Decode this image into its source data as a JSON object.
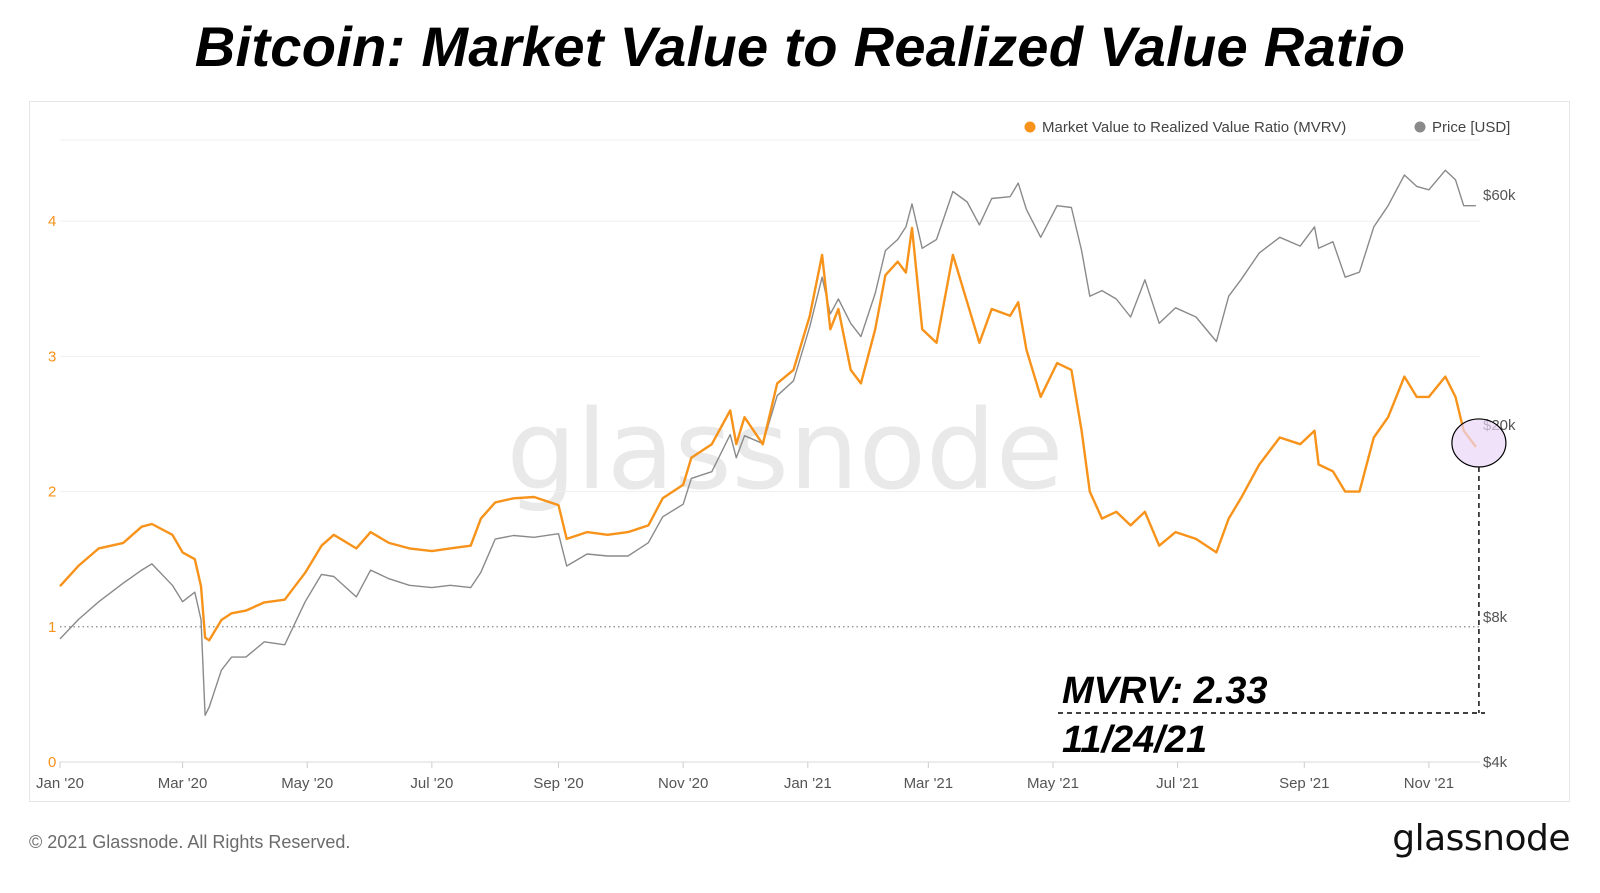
{
  "title": "Bitcoin: Market Value to Realized Value Ratio",
  "footer": {
    "copyright": "© 2021 Glassnode. All Rights Reserved.",
    "brand": "glassnode"
  },
  "watermark": "glassnode",
  "colors": {
    "mvrv": "#f7931a",
    "price": "#8a8a8a",
    "highlight": "#e9d5f7",
    "annotation": "#000000"
  },
  "annotation": {
    "line1": "MVRV: 2.33",
    "line2": "11/24/21"
  },
  "chart_data": {
    "type": "line",
    "title": "Bitcoin: Market Value to Realized Value Ratio",
    "x_tick_labels": [
      "Jan '20",
      "Mar '20",
      "May '20",
      "Jul '20",
      "Sep '20",
      "Nov '20",
      "Jan '21",
      "Mar '21",
      "May '21",
      "Jul '21",
      "Sep '21",
      "Nov '21"
    ],
    "x_range": [
      "2020-01-01",
      "2021-11-26"
    ],
    "y_left": {
      "ticks": [
        "0",
        "1",
        "2",
        "3",
        "4"
      ],
      "range": [
        0,
        4.6
      ]
    },
    "y_right": {
      "ticks": [
        "$4k",
        "$8k",
        "$20k",
        "$60k"
      ],
      "scale": "log",
      "range": [
        4000,
        78000
      ]
    },
    "legend": {
      "position": "top-right",
      "entries": [
        "Market Value to Realized Value Ratio (MVRV)",
        "Price [USD]"
      ]
    },
    "reference_line": {
      "y": 1,
      "style": "dotted"
    },
    "highlight_point": {
      "date": "2021-11-24",
      "mvrv": 2.33
    },
    "series": [
      {
        "name": "Market Value to Realized Value Ratio (MVRV)",
        "axis": "left",
        "points": [
          [
            "2020-01-01",
            1.3
          ],
          [
            "2020-01-10",
            1.45
          ],
          [
            "2020-01-20",
            1.58
          ],
          [
            "2020-02-01",
            1.62
          ],
          [
            "2020-02-10",
            1.74
          ],
          [
            "2020-02-15",
            1.76
          ],
          [
            "2020-02-25",
            1.68
          ],
          [
            "2020-03-01",
            1.55
          ],
          [
            "2020-03-07",
            1.5
          ],
          [
            "2020-03-10",
            1.3
          ],
          [
            "2020-03-12",
            0.92
          ],
          [
            "2020-03-14",
            0.9
          ],
          [
            "2020-03-20",
            1.05
          ],
          [
            "2020-03-25",
            1.1
          ],
          [
            "2020-04-01",
            1.12
          ],
          [
            "2020-04-10",
            1.18
          ],
          [
            "2020-04-20",
            1.2
          ],
          [
            "2020-04-30",
            1.4
          ],
          [
            "2020-05-08",
            1.6
          ],
          [
            "2020-05-14",
            1.68
          ],
          [
            "2020-05-25",
            1.58
          ],
          [
            "2020-06-01",
            1.7
          ],
          [
            "2020-06-10",
            1.62
          ],
          [
            "2020-06-20",
            1.58
          ],
          [
            "2020-07-01",
            1.56
          ],
          [
            "2020-07-10",
            1.58
          ],
          [
            "2020-07-20",
            1.6
          ],
          [
            "2020-07-25",
            1.8
          ],
          [
            "2020-08-01",
            1.92
          ],
          [
            "2020-08-10",
            1.95
          ],
          [
            "2020-08-20",
            1.96
          ],
          [
            "2020-09-01",
            1.9
          ],
          [
            "2020-09-05",
            1.65
          ],
          [
            "2020-09-15",
            1.7
          ],
          [
            "2020-09-25",
            1.68
          ],
          [
            "2020-10-05",
            1.7
          ],
          [
            "2020-10-15",
            1.75
          ],
          [
            "2020-10-22",
            1.95
          ],
          [
            "2020-11-01",
            2.05
          ],
          [
            "2020-11-05",
            2.25
          ],
          [
            "2020-11-15",
            2.35
          ],
          [
            "2020-11-24",
            2.6
          ],
          [
            "2020-11-27",
            2.35
          ],
          [
            "2020-12-01",
            2.55
          ],
          [
            "2020-12-10",
            2.35
          ],
          [
            "2020-12-17",
            2.8
          ],
          [
            "2020-12-25",
            2.9
          ],
          [
            "2021-01-02",
            3.3
          ],
          [
            "2021-01-08",
            3.75
          ],
          [
            "2021-01-12",
            3.2
          ],
          [
            "2021-01-16",
            3.35
          ],
          [
            "2021-01-22",
            2.9
          ],
          [
            "2021-01-27",
            2.8
          ],
          [
            "2021-02-03",
            3.2
          ],
          [
            "2021-02-08",
            3.6
          ],
          [
            "2021-02-14",
            3.7
          ],
          [
            "2021-02-18",
            3.62
          ],
          [
            "2021-02-21",
            3.95
          ],
          [
            "2021-02-26",
            3.2
          ],
          [
            "2021-03-05",
            3.1
          ],
          [
            "2021-03-13",
            3.75
          ],
          [
            "2021-03-20",
            3.4
          ],
          [
            "2021-03-26",
            3.1
          ],
          [
            "2021-04-01",
            3.35
          ],
          [
            "2021-04-10",
            3.3
          ],
          [
            "2021-04-14",
            3.4
          ],
          [
            "2021-04-18",
            3.05
          ],
          [
            "2021-04-25",
            2.7
          ],
          [
            "2021-05-03",
            2.95
          ],
          [
            "2021-05-10",
            2.9
          ],
          [
            "2021-05-15",
            2.45
          ],
          [
            "2021-05-19",
            2.0
          ],
          [
            "2021-05-25",
            1.8
          ],
          [
            "2021-06-01",
            1.85
          ],
          [
            "2021-06-08",
            1.75
          ],
          [
            "2021-06-15",
            1.85
          ],
          [
            "2021-06-22",
            1.6
          ],
          [
            "2021-06-30",
            1.7
          ],
          [
            "2021-07-10",
            1.65
          ],
          [
            "2021-07-20",
            1.55
          ],
          [
            "2021-07-26",
            1.8
          ],
          [
            "2021-08-01",
            1.95
          ],
          [
            "2021-08-10",
            2.2
          ],
          [
            "2021-08-20",
            2.4
          ],
          [
            "2021-08-30",
            2.35
          ],
          [
            "2021-09-06",
            2.45
          ],
          [
            "2021-09-08",
            2.2
          ],
          [
            "2021-09-15",
            2.15
          ],
          [
            "2021-09-21",
            2.0
          ],
          [
            "2021-09-28",
            2.0
          ],
          [
            "2021-10-05",
            2.4
          ],
          [
            "2021-10-12",
            2.55
          ],
          [
            "2021-10-20",
            2.85
          ],
          [
            "2021-10-26",
            2.7
          ],
          [
            "2021-11-01",
            2.7
          ],
          [
            "2021-11-09",
            2.85
          ],
          [
            "2021-11-14",
            2.7
          ],
          [
            "2021-11-18",
            2.45
          ],
          [
            "2021-11-24",
            2.33
          ]
        ]
      },
      {
        "name": "Price [USD]",
        "axis": "right",
        "points": [
          [
            "2020-01-01",
            7200
          ],
          [
            "2020-01-10",
            7900
          ],
          [
            "2020-01-20",
            8600
          ],
          [
            "2020-02-01",
            9400
          ],
          [
            "2020-02-10",
            10000
          ],
          [
            "2020-02-15",
            10300
          ],
          [
            "2020-02-25",
            9300
          ],
          [
            "2020-03-01",
            8600
          ],
          [
            "2020-03-07",
            9000
          ],
          [
            "2020-03-10",
            7900
          ],
          [
            "2020-03-12",
            5000
          ],
          [
            "2020-03-14",
            5200
          ],
          [
            "2020-03-20",
            6200
          ],
          [
            "2020-03-25",
            6600
          ],
          [
            "2020-04-01",
            6600
          ],
          [
            "2020-04-10",
            7100
          ],
          [
            "2020-04-20",
            7000
          ],
          [
            "2020-04-30",
            8600
          ],
          [
            "2020-05-08",
            9800
          ],
          [
            "2020-05-14",
            9700
          ],
          [
            "2020-05-25",
            8800
          ],
          [
            "2020-06-01",
            10000
          ],
          [
            "2020-06-10",
            9600
          ],
          [
            "2020-06-20",
            9300
          ],
          [
            "2020-07-01",
            9200
          ],
          [
            "2020-07-10",
            9300
          ],
          [
            "2020-07-20",
            9200
          ],
          [
            "2020-07-25",
            9900
          ],
          [
            "2020-08-01",
            11600
          ],
          [
            "2020-08-10",
            11800
          ],
          [
            "2020-08-20",
            11700
          ],
          [
            "2020-09-01",
            11900
          ],
          [
            "2020-09-05",
            10200
          ],
          [
            "2020-09-15",
            10800
          ],
          [
            "2020-09-25",
            10700
          ],
          [
            "2020-10-05",
            10700
          ],
          [
            "2020-10-15",
            11400
          ],
          [
            "2020-10-22",
            12900
          ],
          [
            "2020-11-01",
            13700
          ],
          [
            "2020-11-05",
            15500
          ],
          [
            "2020-11-15",
            16000
          ],
          [
            "2020-11-24",
            19100
          ],
          [
            "2020-11-27",
            17100
          ],
          [
            "2020-12-01",
            19000
          ],
          [
            "2020-12-10",
            18300
          ],
          [
            "2020-12-17",
            23000
          ],
          [
            "2020-12-25",
            24700
          ],
          [
            "2021-01-02",
            32000
          ],
          [
            "2021-01-08",
            40500
          ],
          [
            "2021-01-12",
            34000
          ],
          [
            "2021-01-16",
            36500
          ],
          [
            "2021-01-22",
            32500
          ],
          [
            "2021-01-27",
            30500
          ],
          [
            "2021-02-03",
            37500
          ],
          [
            "2021-02-08",
            46000
          ],
          [
            "2021-02-14",
            48500
          ],
          [
            "2021-02-18",
            51500
          ],
          [
            "2021-02-21",
            57500
          ],
          [
            "2021-02-26",
            46500
          ],
          [
            "2021-03-05",
            48500
          ],
          [
            "2021-03-13",
            61000
          ],
          [
            "2021-03-20",
            58000
          ],
          [
            "2021-03-26",
            52000
          ],
          [
            "2021-04-01",
            59000
          ],
          [
            "2021-04-10",
            59500
          ],
          [
            "2021-04-14",
            63500
          ],
          [
            "2021-04-18",
            56000
          ],
          [
            "2021-04-25",
            49000
          ],
          [
            "2021-05-03",
            57000
          ],
          [
            "2021-05-10",
            56500
          ],
          [
            "2021-05-15",
            46000
          ],
          [
            "2021-05-19",
            37000
          ],
          [
            "2021-05-25",
            38000
          ],
          [
            "2021-06-01",
            36500
          ],
          [
            "2021-06-08",
            33500
          ],
          [
            "2021-06-15",
            40000
          ],
          [
            "2021-06-22",
            32500
          ],
          [
            "2021-06-30",
            35000
          ],
          [
            "2021-07-10",
            33500
          ],
          [
            "2021-07-20",
            29800
          ],
          [
            "2021-07-26",
            37000
          ],
          [
            "2021-08-01",
            40000
          ],
          [
            "2021-08-10",
            45500
          ],
          [
            "2021-08-20",
            49000
          ],
          [
            "2021-08-30",
            47000
          ],
          [
            "2021-09-06",
            51500
          ],
          [
            "2021-09-08",
            46500
          ],
          [
            "2021-09-15",
            48000
          ],
          [
            "2021-09-21",
            40500
          ],
          [
            "2021-09-28",
            41500
          ],
          [
            "2021-10-05",
            51500
          ],
          [
            "2021-10-12",
            57000
          ],
          [
            "2021-10-20",
            66000
          ],
          [
            "2021-10-26",
            62500
          ],
          [
            "2021-11-01",
            61500
          ],
          [
            "2021-11-09",
            67500
          ],
          [
            "2021-11-14",
            64500
          ],
          [
            "2021-11-18",
            57000
          ],
          [
            "2021-11-24",
            57000
          ]
        ]
      }
    ]
  }
}
